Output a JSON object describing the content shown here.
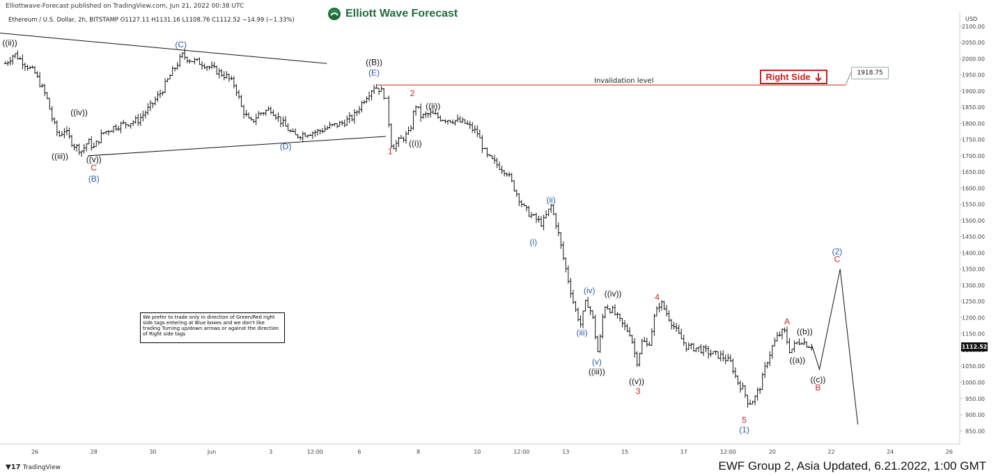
{
  "header": {
    "publish_text": "Elliottwave-Forecast published on TradingView.com, Jun 21, 2022 00:38 UTC",
    "symbol_line": "Ethereum / U.S. Dollar, 2h, BITSTAMP  O1127.11  H1131.16  L1108.76  C1112.52  −14.99 (−1.33%)"
  },
  "brand": {
    "name": "Elliott Wave Forecast",
    "logo_icon": "ewf-logo-icon"
  },
  "footer": {
    "tv_label": "TradingView",
    "tv_icon": "tradingview-logo-icon",
    "ewf_update": "EWF Group 2, Asia Updated, 6.21.2022, 1:00 GMT"
  },
  "note_text": "We prefer to trade only in direction of Green/Red right side tags entering at Blue boxes and we don't like trading Turning up/down arrows or against the direction of Right side tags",
  "right_side_tag": {
    "label": "Right Side",
    "icon": "arrow-down-icon",
    "color": "#cc1f1f"
  },
  "invalidation": {
    "label": "Invalidation level",
    "price": "1918.75",
    "value": 1918.75
  },
  "last_price": "1112.52",
  "colors": {
    "red": "#cc1f1f",
    "blue": "#2a5ca8",
    "black": "#111111",
    "brand_green": "#1f6b3a"
  },
  "chart_data": {
    "type": "candlestick",
    "symbol": "Ethereum / U.S. Dollar",
    "interval": "2h",
    "exchange": "BITSTAMP",
    "ohlc_last": {
      "open": 1127.11,
      "high": 1131.16,
      "low": 1108.76,
      "close": 1112.52,
      "change": -14.99,
      "change_pct": -1.33
    },
    "currency_label": "USD",
    "ylim": [
      810,
      2115
    ],
    "y_ticks": [
      850,
      900,
      950,
      1000,
      1050,
      1100,
      1150,
      1200,
      1250,
      1300,
      1350,
      1400,
      1450,
      1500,
      1550,
      1600,
      1650,
      1700,
      1750,
      1800,
      1850,
      1900,
      1950,
      2000,
      2050,
      2100
    ],
    "y_tick_labels": [
      "850.00",
      "900.00",
      "950.00",
      "1000.00",
      "1050.00",
      "1100.00",
      "1150.00",
      "1200.00",
      "1250.00",
      "1300.00",
      "1350.00",
      "1400.00",
      "1450.00",
      "1500.00",
      "1550.00",
      "1600.00",
      "1650.00",
      "1700.00",
      "1750.00",
      "1800.00",
      "1850.00",
      "1900.00",
      "1950.00",
      "2000.00",
      "2050.00",
      "2100.00"
    ],
    "x_range": [
      24.6,
      26.1
    ],
    "x_ticks": [
      {
        "t": 1.0,
        "label": "26"
      },
      {
        "t": 3.0,
        "label": "28"
      },
      {
        "t": 5.0,
        "label": "30"
      },
      {
        "t": 7.0,
        "label": "Jun"
      },
      {
        "t": 9.0,
        "label": "3"
      },
      {
        "t": 10.5,
        "label": "12:00"
      },
      {
        "t": 12.0,
        "label": "6"
      },
      {
        "t": 14.0,
        "label": "8"
      },
      {
        "t": 16.0,
        "label": "10"
      },
      {
        "t": 17.5,
        "label": "12:00"
      },
      {
        "t": 19.0,
        "label": "13"
      },
      {
        "t": 21.0,
        "label": "15"
      },
      {
        "t": 23.0,
        "label": "17"
      },
      {
        "t": 24.5,
        "label": "12:00"
      },
      {
        "t": 26.0,
        "label": "20"
      },
      {
        "t": 28.0,
        "label": "22"
      },
      {
        "t": 30.0,
        "label": "24"
      },
      {
        "t": 32.0,
        "label": "26"
      }
    ],
    "x_label_t": [
      1,
      3,
      5,
      7,
      9,
      10.5,
      12,
      14,
      16,
      17.5,
      19,
      21,
      23,
      24.5,
      26,
      28,
      30,
      32
    ],
    "price_path": [
      [
        0.0,
        1985
      ],
      [
        0.3,
        2015
      ],
      [
        0.6,
        1990
      ],
      [
        1.0,
        1955
      ],
      [
        1.4,
        1880
      ],
      [
        1.6,
        1810
      ],
      [
        1.8,
        1760
      ],
      [
        2.0,
        1780
      ],
      [
        2.3,
        1735
      ],
      [
        2.6,
        1715
      ],
      [
        2.8,
        1745
      ],
      [
        3.0,
        1725
      ],
      [
        3.3,
        1770
      ],
      [
        3.7,
        1790
      ],
      [
        4.1,
        1800
      ],
      [
        4.5,
        1810
      ],
      [
        4.9,
        1850
      ],
      [
        5.3,
        1900
      ],
      [
        5.6,
        1950
      ],
      [
        6.0,
        2010
      ],
      [
        6.3,
        1995
      ],
      [
        6.7,
        1985
      ],
      [
        7.1,
        1965
      ],
      [
        7.5,
        1945
      ],
      [
        7.8,
        1915
      ],
      [
        8.0,
        1850
      ],
      [
        8.3,
        1800
      ],
      [
        8.6,
        1830
      ],
      [
        9.0,
        1845
      ],
      [
        9.4,
        1800
      ],
      [
        9.8,
        1760
      ],
      [
        10.2,
        1770
      ],
      [
        10.6,
        1775
      ],
      [
        11.0,
        1790
      ],
      [
        11.4,
        1800
      ],
      [
        11.8,
        1820
      ],
      [
        12.2,
        1880
      ],
      [
        12.5,
        1915
      ],
      [
        12.7,
        1905
      ],
      [
        12.9,
        1880
      ],
      [
        13.1,
        1725
      ],
      [
        13.4,
        1750
      ],
      [
        13.7,
        1770
      ],
      [
        13.9,
        1860
      ],
      [
        14.1,
        1820
      ],
      [
        14.4,
        1830
      ],
      [
        14.8,
        1815
      ],
      [
        15.2,
        1810
      ],
      [
        15.6,
        1800
      ],
      [
        16.0,
        1770
      ],
      [
        16.3,
        1700
      ],
      [
        16.7,
        1670
      ],
      [
        17.0,
        1650
      ],
      [
        17.3,
        1590
      ],
      [
        17.6,
        1535
      ],
      [
        17.9,
        1510
      ],
      [
        18.2,
        1490
      ],
      [
        18.5,
        1545
      ],
      [
        18.7,
        1480
      ],
      [
        18.9,
        1390
      ],
      [
        19.1,
        1310
      ],
      [
        19.3,
        1230
      ],
      [
        19.5,
        1180
      ],
      [
        19.7,
        1255
      ],
      [
        19.9,
        1205
      ],
      [
        20.1,
        1085
      ],
      [
        20.3,
        1240
      ],
      [
        20.6,
        1220
      ],
      [
        20.9,
        1180
      ],
      [
        21.2,
        1150
      ],
      [
        21.4,
        1060
      ],
      [
        21.6,
        1130
      ],
      [
        21.8,
        1110
      ],
      [
        22.0,
        1200
      ],
      [
        22.2,
        1250
      ],
      [
        22.5,
        1200
      ],
      [
        22.8,
        1150
      ],
      [
        23.1,
        1110
      ],
      [
        23.5,
        1105
      ],
      [
        23.9,
        1090
      ],
      [
        24.3,
        1080
      ],
      [
        24.6,
        1060
      ],
      [
        24.8,
        1005
      ],
      [
        25.0,
        980
      ],
      [
        25.2,
        935
      ],
      [
        25.4,
        950
      ],
      [
        25.6,
        990
      ],
      [
        25.8,
        1060
      ],
      [
        26.0,
        1110
      ],
      [
        26.2,
        1145
      ],
      [
        26.4,
        1160
      ],
      [
        26.6,
        1095
      ],
      [
        26.8,
        1120
      ],
      [
        27.0,
        1130
      ],
      [
        27.2,
        1115
      ],
      [
        27.35,
        1112.52
      ]
    ],
    "projection_path": [
      [
        27.35,
        1112.52
      ],
      [
        27.6,
        1040
      ],
      [
        28.3,
        1350
      ],
      [
        28.9,
        870
      ]
    ],
    "trendlines": [
      {
        "name": "triangle-upper-line",
        "points": [
          [
            -0.3,
            2080
          ],
          [
            10.9,
            1985
          ]
        ],
        "color": "#111111"
      },
      {
        "name": "triangle-lower-line",
        "points": [
          [
            2.8,
            1700
          ],
          [
            12.9,
            1760
          ]
        ],
        "color": "#111111"
      }
    ],
    "labels": [
      {
        "text": "((ii))",
        "t": 0.15,
        "price": 2040,
        "color": "#111111"
      },
      {
        "text": "(C)",
        "t": 5.95,
        "price": 2035,
        "color": "#2a5ca8"
      },
      {
        "text": "((iv))",
        "t": 2.5,
        "price": 1825,
        "color": "#111111"
      },
      {
        "text": "((iii))",
        "t": 1.85,
        "price": 1690,
        "color": "#111111"
      },
      {
        "text": "((v))",
        "t": 3.0,
        "price": 1680,
        "color": "#111111"
      },
      {
        "text": "C",
        "t": 3.0,
        "price": 1655,
        "color": "#cc1f1f"
      },
      {
        "text": "(B)",
        "t": 3.0,
        "price": 1620,
        "color": "#2a5ca8"
      },
      {
        "text": "(D)",
        "t": 9.5,
        "price": 1720,
        "color": "#2a5ca8"
      },
      {
        "text": "((B))",
        "t": 12.5,
        "price": 1980,
        "color": "#111111"
      },
      {
        "text": "(E)",
        "t": 12.5,
        "price": 1948,
        "color": "#2a5ca8"
      },
      {
        "text": "2",
        "t": 13.8,
        "price": 1885,
        "color": "#cc1f1f"
      },
      {
        "text": "((ii))",
        "t": 14.5,
        "price": 1845,
        "color": "#111111"
      },
      {
        "text": "1",
        "t": 13.05,
        "price": 1705,
        "color": "#cc1f1f"
      },
      {
        "text": "((i))",
        "t": 13.9,
        "price": 1730,
        "color": "#111111"
      },
      {
        "text": "(ii)",
        "t": 18.5,
        "price": 1555,
        "color": "#2a5ca8"
      },
      {
        "text": "(i)",
        "t": 17.9,
        "price": 1425,
        "color": "#2a5ca8"
      },
      {
        "text": "(iv)",
        "t": 19.8,
        "price": 1275,
        "color": "#2a5ca8"
      },
      {
        "text": "((iv))",
        "t": 20.6,
        "price": 1265,
        "color": "#111111"
      },
      {
        "text": "4",
        "t": 22.1,
        "price": 1255,
        "color": "#cc1f1f"
      },
      {
        "text": "(iii)",
        "t": 19.55,
        "price": 1145,
        "color": "#2a5ca8"
      },
      {
        "text": "(v)",
        "t": 20.05,
        "price": 1055,
        "color": "#2a5ca8"
      },
      {
        "text": "((iii))",
        "t": 20.05,
        "price": 1025,
        "color": "#111111"
      },
      {
        "text": "((v))",
        "t": 21.4,
        "price": 995,
        "color": "#111111"
      },
      {
        "text": "3",
        "t": 21.45,
        "price": 965,
        "color": "#cc1f1f"
      },
      {
        "text": "A",
        "t": 26.5,
        "price": 1180,
        "color": "#cc1f1f"
      },
      {
        "text": "((b))",
        "t": 27.1,
        "price": 1148,
        "color": "#111111"
      },
      {
        "text": "((a))",
        "t": 26.85,
        "price": 1060,
        "color": "#111111"
      },
      {
        "text": "((c))",
        "t": 27.55,
        "price": 1000,
        "color": "#111111"
      },
      {
        "text": "B",
        "t": 27.55,
        "price": 975,
        "color": "#cc1f1f"
      },
      {
        "text": "(2)",
        "t": 28.2,
        "price": 1395,
        "color": "#2a5ca8"
      },
      {
        "text": "C",
        "t": 28.2,
        "price": 1372,
        "color": "#cc1f1f"
      },
      {
        "text": "5",
        "t": 25.05,
        "price": 875,
        "color": "#cc1f1f"
      },
      {
        "text": "(1)",
        "t": 25.05,
        "price": 845,
        "color": "#2a5ca8"
      }
    ]
  }
}
